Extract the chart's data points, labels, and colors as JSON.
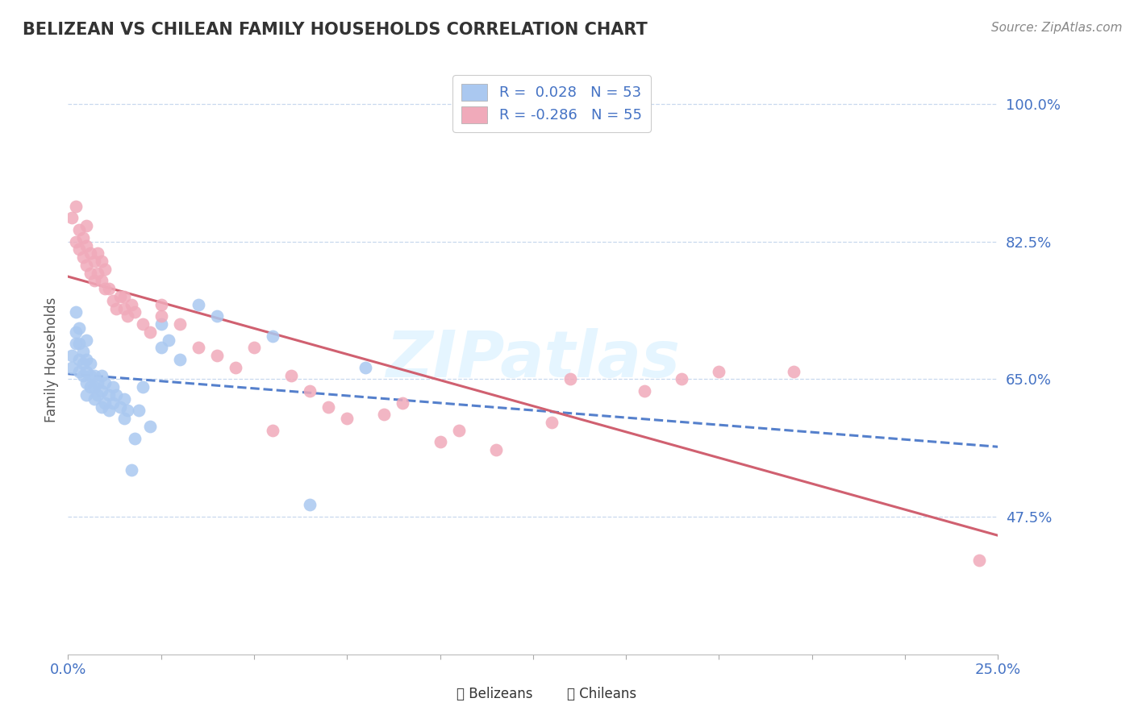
{
  "title": "BELIZEAN VS CHILEAN FAMILY HOUSEHOLDS CORRELATION CHART",
  "source": "Source: ZipAtlas.com",
  "ylabel": "Family Households",
  "xlim": [
    0.0,
    0.25
  ],
  "ylim": [
    0.3,
    1.05
  ],
  "yticks": [
    0.475,
    0.65,
    0.825,
    1.0
  ],
  "ytick_labels": [
    "47.5%",
    "65.0%",
    "82.5%",
    "100.0%"
  ],
  "xticks": [
    0.0,
    0.025,
    0.05,
    0.075,
    0.1,
    0.125,
    0.15,
    0.175,
    0.2,
    0.225,
    0.25
  ],
  "belizean_color": "#aac8f0",
  "chilean_color": "#f0aaba",
  "belizean_line_color": "#5580cc",
  "chilean_line_color": "#d06070",
  "R_belizean": 0.028,
  "N_belizean": 53,
  "R_chilean": -0.286,
  "N_chilean": 55,
  "title_color": "#333333",
  "axis_color": "#4472c4",
  "grid_color": "#c8d8ee",
  "belizean_x": [
    0.001,
    0.001,
    0.002,
    0.002,
    0.002,
    0.003,
    0.003,
    0.003,
    0.003,
    0.004,
    0.004,
    0.004,
    0.005,
    0.005,
    0.005,
    0.005,
    0.005,
    0.006,
    0.006,
    0.006,
    0.007,
    0.007,
    0.007,
    0.008,
    0.008,
    0.009,
    0.009,
    0.009,
    0.01,
    0.01,
    0.011,
    0.011,
    0.012,
    0.012,
    0.013,
    0.014,
    0.015,
    0.015,
    0.016,
    0.017,
    0.018,
    0.019,
    0.02,
    0.022,
    0.025,
    0.025,
    0.027,
    0.03,
    0.035,
    0.04,
    0.055,
    0.065,
    0.08
  ],
  "belizean_y": [
    0.665,
    0.68,
    0.695,
    0.71,
    0.735,
    0.66,
    0.675,
    0.695,
    0.715,
    0.655,
    0.67,
    0.685,
    0.63,
    0.645,
    0.66,
    0.675,
    0.7,
    0.64,
    0.655,
    0.67,
    0.625,
    0.64,
    0.655,
    0.63,
    0.645,
    0.615,
    0.635,
    0.655,
    0.62,
    0.645,
    0.61,
    0.63,
    0.62,
    0.64,
    0.63,
    0.615,
    0.6,
    0.625,
    0.61,
    0.535,
    0.575,
    0.61,
    0.64,
    0.59,
    0.69,
    0.72,
    0.7,
    0.675,
    0.745,
    0.73,
    0.705,
    0.49,
    0.665
  ],
  "chilean_x": [
    0.001,
    0.002,
    0.002,
    0.003,
    0.003,
    0.004,
    0.004,
    0.005,
    0.005,
    0.005,
    0.006,
    0.006,
    0.007,
    0.007,
    0.008,
    0.008,
    0.009,
    0.009,
    0.01,
    0.01,
    0.011,
    0.012,
    0.013,
    0.014,
    0.015,
    0.015,
    0.016,
    0.017,
    0.018,
    0.02,
    0.022,
    0.025,
    0.025,
    0.03,
    0.035,
    0.04,
    0.045,
    0.05,
    0.055,
    0.06,
    0.065,
    0.07,
    0.075,
    0.085,
    0.09,
    0.1,
    0.105,
    0.115,
    0.13,
    0.135,
    0.155,
    0.165,
    0.175,
    0.195,
    0.245
  ],
  "chilean_y": [
    0.855,
    0.825,
    0.87,
    0.815,
    0.84,
    0.805,
    0.83,
    0.795,
    0.82,
    0.845,
    0.785,
    0.81,
    0.775,
    0.8,
    0.785,
    0.81,
    0.775,
    0.8,
    0.765,
    0.79,
    0.765,
    0.75,
    0.74,
    0.755,
    0.74,
    0.755,
    0.73,
    0.745,
    0.735,
    0.72,
    0.71,
    0.745,
    0.73,
    0.72,
    0.69,
    0.68,
    0.665,
    0.69,
    0.585,
    0.655,
    0.635,
    0.615,
    0.6,
    0.605,
    0.62,
    0.57,
    0.585,
    0.56,
    0.595,
    0.65,
    0.635,
    0.65,
    0.66,
    0.66,
    0.42
  ]
}
